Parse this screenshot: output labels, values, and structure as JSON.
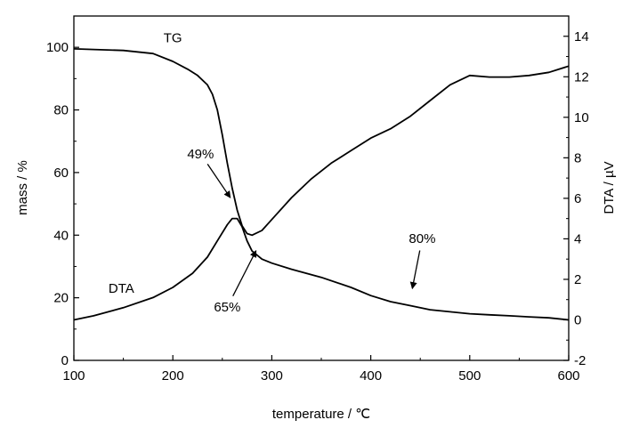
{
  "chart_data": {
    "type": "line",
    "title": "",
    "xlabel": "temperature / ℃",
    "ylabel_left": "mass / %",
    "ylabel_right": "DTA / µV",
    "xlim": [
      100,
      600
    ],
    "ylim_left": [
      0,
      110
    ],
    "ylim_right": [
      -2,
      15
    ],
    "x_ticks": [
      100,
      200,
      300,
      400,
      500,
      600
    ],
    "y_ticks_left": [
      0,
      20,
      40,
      60,
      80,
      100
    ],
    "y_ticks_right": [
      -2,
      0,
      2,
      4,
      6,
      8,
      10,
      12,
      14
    ],
    "grid": false,
    "series": [
      {
        "name": "TG",
        "axis": "left",
        "x": [
          100,
          120,
          150,
          180,
          200,
          215,
          225,
          235,
          240,
          245,
          250,
          255,
          260,
          265,
          270,
          275,
          280,
          290,
          300,
          320,
          340,
          360,
          380,
          400,
          420,
          440,
          460,
          480,
          500,
          520,
          540,
          560,
          580,
          600
        ],
        "y": [
          99.5,
          99.3,
          99,
          98,
          95.5,
          93,
          91,
          88,
          85,
          80,
          72,
          63,
          55,
          48,
          43,
          40.5,
          40,
          41.5,
          45,
          52,
          58,
          63,
          67,
          71,
          74,
          78,
          83,
          88,
          91,
          90.5,
          90.5,
          91,
          92,
          94
        ]
      },
      {
        "name": "DTA",
        "axis": "right",
        "x": [
          100,
          120,
          150,
          180,
          200,
          220,
          235,
          245,
          255,
          260,
          265,
          270,
          275,
          280,
          290,
          300,
          320,
          350,
          380,
          400,
          420,
          440,
          460,
          480,
          500,
          520,
          540,
          560,
          580,
          600
        ],
        "y": [
          0,
          0.2,
          0.6,
          1.1,
          1.6,
          2.3,
          3.1,
          3.9,
          4.7,
          5.0,
          5.0,
          4.6,
          3.9,
          3.4,
          3.0,
          2.8,
          2.5,
          2.1,
          1.6,
          1.2,
          0.9,
          0.7,
          0.5,
          0.4,
          0.3,
          0.25,
          0.2,
          0.15,
          0.1,
          0.0
        ]
      }
    ],
    "annotations": [
      {
        "text": "TG",
        "x": 200,
        "y_left": 103
      },
      {
        "text": "DTA",
        "x": 148,
        "y_left": 23
      },
      {
        "text": "49%",
        "x": 228,
        "y_left": 66,
        "arrow_to": {
          "x": 258,
          "y_left": 52
        }
      },
      {
        "text": "65%",
        "x": 255,
        "y_left": 17,
        "arrow_to": {
          "x": 284,
          "y_left": 35
        }
      },
      {
        "text": "80%",
        "x": 452,
        "y_left": 39,
        "arrow_to": {
          "x": 442,
          "y_left": 23
        }
      }
    ]
  }
}
